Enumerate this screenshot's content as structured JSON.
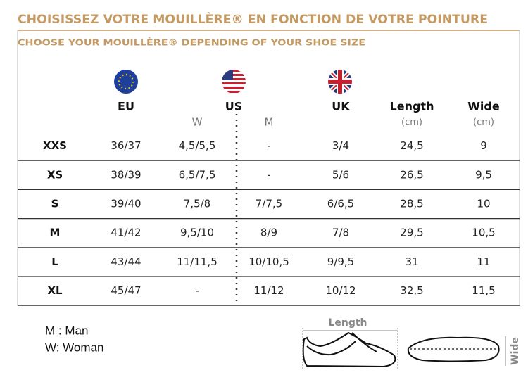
{
  "header": {
    "title": "CHOISISSEZ VOTRE MOUILLÈRE® EN FONCTION DE VOTRE POINTURE",
    "subtitle": "CHOOSE YOUR MOUILLÈRE® DEPENDING OF YOUR SHOE SIZE"
  },
  "table": {
    "columns": {
      "eu": "EU",
      "us": "US",
      "uk": "UK",
      "length": "Length",
      "wide": "Wide"
    },
    "subcolumns": {
      "w": "W",
      "m": "M",
      "length_unit": "(cm)",
      "wide_unit": "(cm)"
    },
    "rows": [
      [
        "XXS",
        "36/37",
        "4,5/5,5",
        "-",
        "3/4",
        "24,5",
        "9"
      ],
      [
        "XS",
        "38/39",
        "6,5/7,5",
        "-",
        "5/6",
        "26,5",
        "9,5"
      ],
      [
        "S",
        "39/40",
        "7,5/8",
        "7/7,5",
        "6/6,5",
        "28,5",
        "10"
      ],
      [
        "M",
        "41/42",
        "9,5/10",
        "8/9",
        "7/8",
        "29,5",
        "10,5"
      ],
      [
        "L",
        "43/44",
        "11/11,5",
        "10/10,5",
        "9/9,5",
        "31",
        "11"
      ],
      [
        "XL",
        "45/47",
        "-",
        "11/12",
        "10/12",
        "32,5",
        "11,5"
      ]
    ]
  },
  "legend": [
    "M : Man",
    "W: Woman"
  ],
  "diagram": {
    "length": "Length",
    "wide": "Wide"
  }
}
